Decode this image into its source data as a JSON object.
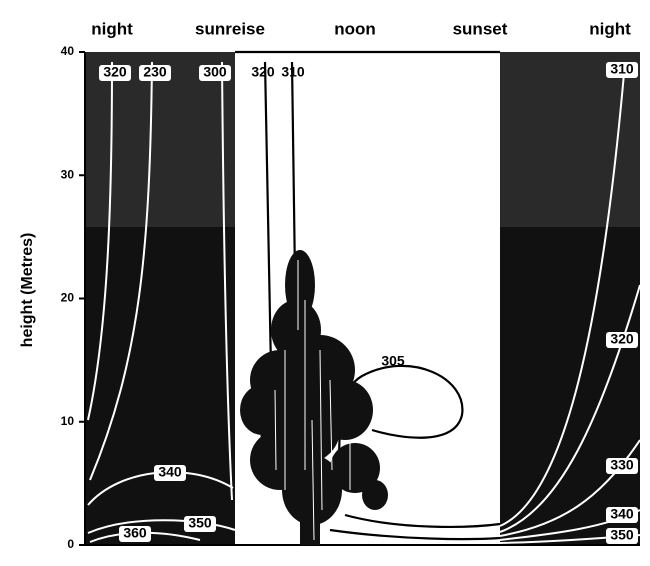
{
  "chart_data": {
    "type": "contour",
    "y_axis_label": "height (Metres)",
    "ylim": [
      0,
      40
    ],
    "yticks": [
      0,
      10,
      20,
      30,
      40
    ],
    "time_labels": [
      "night",
      "sunreise",
      "noon",
      "sunset",
      "night"
    ],
    "contour_labels": [
      320,
      230,
      300,
      320,
      310,
      310,
      305,
      340,
      350,
      360,
      320,
      330,
      340,
      350
    ]
  }
}
